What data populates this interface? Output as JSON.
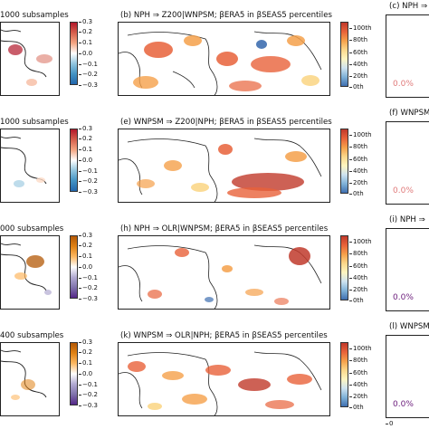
{
  "rows": [
    {
      "panel_a_title": "1000 subsamples",
      "panel_b_title": "(b) NPH ⇒ Z200|WNPSM; βERA5 in βSEAS5 percentiles",
      "panel_c_title": "(c) NPH ⇒",
      "diff_ticks": [
        "0.3",
        "0.2",
        "0.1",
        "0.0",
        "−0.1",
        "−0.2",
        "−0.3"
      ],
      "pct_ticks": [
        "100th",
        "80th",
        "60th",
        "40th",
        "20th",
        "0th"
      ],
      "side_value": "0.0%",
      "side_color": "#e07a7a",
      "palette": "red-blue"
    },
    {
      "panel_a_title": "1000 subsamples",
      "panel_b_title": "(e) WNPSM ⇒ Z200|NPH; βERA5 in βSEAS5 percentiles",
      "panel_c_title": "(f) WNPSM",
      "diff_ticks": [
        "0.3",
        "0.2",
        "0.1",
        "0.0",
        "−0.1",
        "−0.2",
        "−0.3"
      ],
      "pct_ticks": [
        "100th",
        "80th",
        "60th",
        "40th",
        "20th",
        "0th"
      ],
      "side_value": "0.0%",
      "side_color": "#e07a7a",
      "palette": "red-blue"
    },
    {
      "panel_a_title": "000 subsamples",
      "panel_b_title": "(h) NPH ⇒ OLR|WNPSM; βERA5 in βSEAS5 percentiles",
      "panel_c_title": "(i) NPH ⇒",
      "diff_ticks": [
        "0.3",
        "0.2",
        "0.1",
        "0.0",
        "−0.1",
        "−0.2",
        "−0.3"
      ],
      "pct_ticks": [
        "100th",
        "80th",
        "60th",
        "40th",
        "20th",
        "0th"
      ],
      "side_value": "0.0%",
      "side_color": "#6a1b7a",
      "palette": "orange-purple"
    },
    {
      "panel_a_title": "400 subsamples",
      "panel_b_title": "(k) WNPSM ⇒ OLR|NPH; βERA5 in βSEAS5 percentiles",
      "panel_c_title": "(l) WNPSM",
      "diff_ticks": [
        "0.3",
        "0.2",
        "0.1",
        "0.0",
        "−0.1",
        "−0.2",
        "−0.3"
      ],
      "pct_ticks": [
        "100th",
        "80th",
        "60th",
        "40th",
        "20th",
        "0th"
      ],
      "side_value": "0.0%",
      "side_color": "#6a1b7a",
      "palette": "orange-purple"
    }
  ],
  "bottom_axis_label": "0",
  "colors": {
    "red_blue": [
      "#b2182b",
      "#d6604d",
      "#f4a582",
      "#fddbc7",
      "#d1e5f0",
      "#92c5de",
      "#4393c3",
      "#2166ac"
    ],
    "orange_purple": [
      "#b35806",
      "#e08214",
      "#fdb863",
      "#fee0b6",
      "#d8daeb",
      "#b2abd2",
      "#8073ac",
      "#542788"
    ],
    "percentile": [
      "#c0392b",
      "#e8623a",
      "#f5a04a",
      "#fbd78a",
      "#fff6c0",
      "#cfe3f0",
      "#7fb2d8",
      "#3f6fb0"
    ]
  }
}
